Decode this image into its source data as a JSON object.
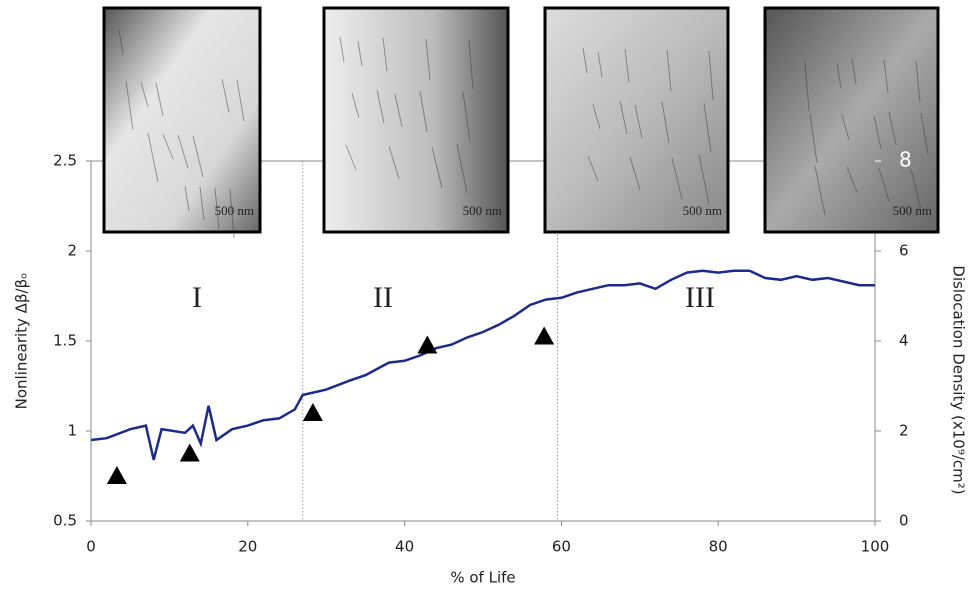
{
  "chart_data": {
    "type": "line",
    "x_label": "% of Life",
    "y_label": "Nonlinearity Δβ/βₒ",
    "y2_label": "Dislocation Density (x10⁹/cm²)",
    "xlim": [
      0,
      100
    ],
    "xticks": [
      0,
      20,
      40,
      60,
      80,
      100
    ],
    "ylim": [
      0.5,
      2.5
    ],
    "yticks": [
      0.5,
      1,
      1.5,
      2,
      2.5
    ],
    "y2lim": [
      0,
      8
    ],
    "y2ticks": [
      0,
      2,
      4,
      6,
      8
    ],
    "x": [
      0,
      2,
      5,
      7,
      8,
      9,
      12,
      13,
      14,
      15,
      16,
      18,
      20,
      22,
      24,
      26,
      27,
      30,
      33,
      35,
      38,
      40,
      42,
      44,
      46,
      48,
      50,
      52,
      54,
      56,
      58,
      60,
      62,
      64,
      66,
      68,
      70,
      72,
      74,
      76,
      78,
      80,
      82,
      84,
      86,
      88,
      90,
      92,
      94,
      96,
      98,
      100
    ],
    "series": [
      {
        "color": "#1c2a8a",
        "values": [
          0.95,
          0.96,
          1.01,
          1.03,
          0.84,
          1.01,
          0.99,
          1.03,
          0.93,
          1.14,
          0.95,
          1.01,
          1.03,
          1.06,
          1.07,
          1.12,
          1.2,
          1.23,
          1.28,
          1.31,
          1.38,
          1.39,
          1.42,
          1.46,
          1.48,
          1.52,
          1.55,
          1.59,
          1.64,
          1.7,
          1.73,
          1.74,
          1.77,
          1.79,
          1.81,
          1.81,
          1.82,
          1.79,
          1.84,
          1.88,
          1.89,
          1.88,
          1.89,
          1.89,
          1.85,
          1.84,
          1.86,
          1.84,
          1.85,
          1.83,
          1.81,
          1.81
        ]
      },
      {
        "type": "scatter",
        "marker": "triangle",
        "axis": "y2",
        "color": "#000000",
        "x": [
          3.3,
          12.6,
          28.3,
          42.9,
          57.8
        ],
        "values": [
          1.0,
          1.5,
          2.4,
          3.9,
          4.1
        ]
      }
    ],
    "region_boundaries": [
      27,
      59.5
    ],
    "region_labels": [
      "I",
      "II",
      "III"
    ],
    "images": [
      {
        "scale_label": "500 nm"
      },
      {
        "scale_label": "500 nm"
      },
      {
        "scale_label": "500 nm"
      },
      {
        "scale_label": "500 nm"
      }
    ]
  }
}
